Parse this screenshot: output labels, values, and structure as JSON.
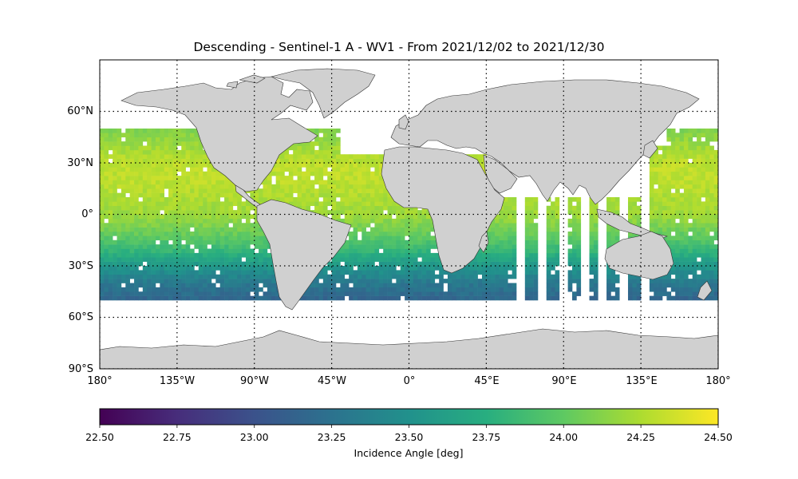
{
  "figure": {
    "title": "Descending - Sentinel-1 A - WV1 - From 2021/12/02 to 2021/12/30"
  },
  "map": {
    "projection": "PlateCarree",
    "land_color": "#d0d0d0",
    "coastline_color": "#333333",
    "grid": "dotted",
    "xticks": [
      {
        "value": -180,
        "label": "180°"
      },
      {
        "value": -135,
        "label": "135°W"
      },
      {
        "value": -90,
        "label": "90°W"
      },
      {
        "value": -45,
        "label": "45°W"
      },
      {
        "value": 0,
        "label": "0°"
      },
      {
        "value": 45,
        "label": "45°E"
      },
      {
        "value": 90,
        "label": "90°E"
      },
      {
        "value": 135,
        "label": "135°E"
      },
      {
        "value": 180,
        "label": "180°"
      }
    ],
    "yticks": [
      {
        "value": 60,
        "label": "60°N"
      },
      {
        "value": 30,
        "label": "30°N"
      },
      {
        "value": 0,
        "label": "0°"
      },
      {
        "value": -30,
        "label": "30°S"
      },
      {
        "value": -60,
        "label": "60°S"
      },
      {
        "value": -90,
        "label": "90°S"
      }
    ]
  },
  "chart_data": {
    "type": "heatmap",
    "variable_label": "Incidence Angle [deg]",
    "colormap": "viridis",
    "vmin": 22.5,
    "vmax": 24.5,
    "lon_range": [
      -180,
      180
    ],
    "lat_range": [
      -90,
      90
    ],
    "data_extent_lat": [
      -50,
      50
    ],
    "colorbar_ticks": [
      "22.50",
      "22.75",
      "23.00",
      "23.25",
      "23.50",
      "23.75",
      "24.00",
      "24.25",
      "24.50"
    ],
    "latitude_profile": [
      {
        "lat": 50,
        "value": 24.1
      },
      {
        "lat": 40,
        "value": 24.2
      },
      {
        "lat": 30,
        "value": 24.3
      },
      {
        "lat": 20,
        "value": 24.3
      },
      {
        "lat": 10,
        "value": 24.25
      },
      {
        "lat": 0,
        "value": 24.2
      },
      {
        "lat": -10,
        "value": 24.05
      },
      {
        "lat": -20,
        "value": 23.85
      },
      {
        "lat": -30,
        "value": 23.55
      },
      {
        "lat": -40,
        "value": 23.3
      },
      {
        "lat": -50,
        "value": 23.15
      }
    ]
  }
}
